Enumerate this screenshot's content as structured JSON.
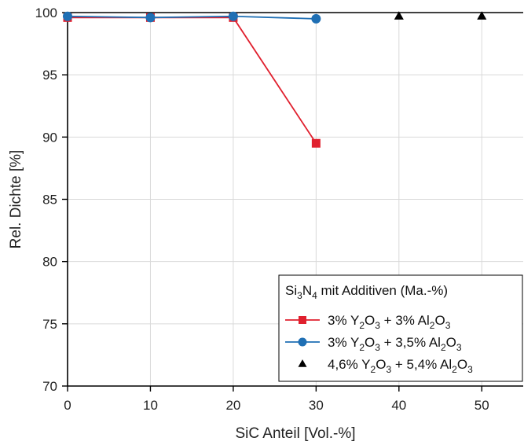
{
  "chart_data": {
    "type": "line",
    "xlabel": "SiC Anteil [Vol.-%]",
    "ylabel": "Rel. Dichte [%]",
    "xlim": [
      0,
      55
    ],
    "ylim": [
      70,
      100
    ],
    "x_ticks": [
      0,
      10,
      20,
      30,
      40,
      50
    ],
    "y_ticks": [
      70,
      75,
      80,
      85,
      90,
      95,
      100
    ],
    "grid": true,
    "reference_line": 100,
    "legend": {
      "placement": "bottom-right",
      "title": "Si3N4 mit Additiven (Ma.-%)"
    },
    "series": [
      {
        "name": "3% Y2O3 + 3% Al2O3",
        "color": "#e0202e",
        "marker": "square",
        "line": true,
        "x": [
          0,
          10,
          20,
          30
        ],
        "y": [
          99.6,
          99.6,
          99.6,
          89.5
        ]
      },
      {
        "name": "3% Y2O3 + 3,5% Al2O3",
        "color": "#1f6fb4",
        "marker": "circle",
        "line": true,
        "x": [
          0,
          10,
          20,
          30
        ],
        "y": [
          99.7,
          99.6,
          99.7,
          99.5
        ]
      },
      {
        "name": "4,6% Y2O3 + 5,4% Al2O3",
        "color": "#000000",
        "marker": "triangle",
        "line": false,
        "x": [
          40,
          50
        ],
        "y": [
          99.7,
          99.7
        ]
      }
    ]
  }
}
